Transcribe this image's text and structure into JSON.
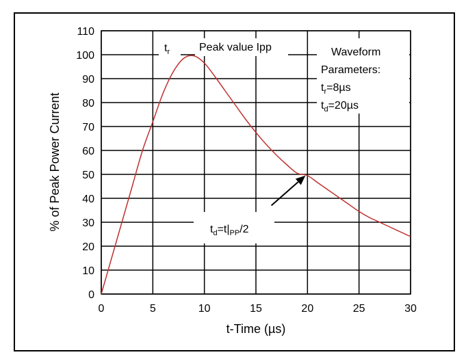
{
  "chart_data": {
    "type": "line",
    "title": "",
    "xlabel": "t-Time (µs)",
    "ylabel": "% of Peak Power Current",
    "xlim": [
      0,
      30
    ],
    "ylim": [
      0,
      110
    ],
    "x_ticks": [
      0,
      5,
      10,
      15,
      20,
      25,
      30
    ],
    "y_ticks": [
      0,
      10,
      20,
      30,
      40,
      50,
      60,
      70,
      80,
      90,
      100,
      110
    ],
    "grid": true,
    "series": [
      {
        "color": "#c0302f",
        "x": [
          0,
          1,
          2,
          3,
          4,
          5,
          6,
          7,
          8,
          9,
          10,
          11,
          12,
          13,
          14,
          15,
          16,
          17,
          18,
          19,
          20,
          21,
          22,
          23,
          24,
          25,
          26,
          27,
          28,
          29,
          30
        ],
        "y": [
          0,
          15,
          30,
          45,
          60,
          72,
          84,
          93,
          98.5,
          99.5,
          96.5,
          91,
          85,
          79,
          73,
          67.5,
          62.5,
          58,
          54,
          50.5,
          49.5,
          46.5,
          43.5,
          40.5,
          37.5,
          34.5,
          32,
          30,
          28,
          26,
          24
        ]
      }
    ],
    "annotations": {
      "tr_main": "t",
      "tr_sub": "r",
      "peak": "Peak value Ipp",
      "params_title_1": "Waveform",
      "params_title_2": "Parameters:",
      "param1_main": "t",
      "param1_sub": "r",
      "param1_value": "=8µs",
      "param2_main": "t",
      "param2_sub": "d",
      "param2_value": "=20µs",
      "td_main": "t",
      "td_sub1": "d",
      "td_mid": "=t|",
      "td_sub2": "PP",
      "td_end": "/2",
      "arrow_from": [
        16.5,
        37
      ],
      "arrow_to": [
        19.8,
        49.5
      ]
    }
  }
}
